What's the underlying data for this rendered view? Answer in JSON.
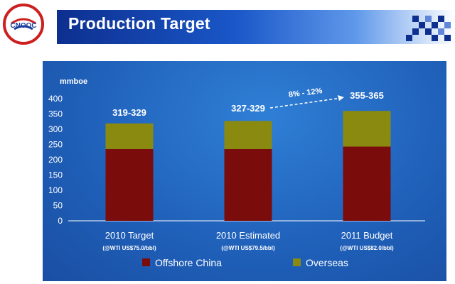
{
  "header": {
    "title": "Production Target",
    "logo_icon": "cnooc-logo-icon",
    "logo_text": "CNOOC"
  },
  "colors": {
    "accent": "#0d2f8f",
    "offshore": "#7a0c0c",
    "overseas": "#8a8a10",
    "panel": "#1f5fb8"
  },
  "chart_data": {
    "type": "bar",
    "stacked": true,
    "ylabel": "mmboe",
    "ylim": [
      0,
      400
    ],
    "yticks": [
      "0",
      "50",
      "100",
      "150",
      "200",
      "250",
      "300",
      "350",
      "400"
    ],
    "categories": [
      "2010 Target",
      "2010 Estimated",
      "2011 Budget"
    ],
    "sublabels": [
      "(@WTI US$75.0/bbl)",
      "(@WTI US$79.5/bbl)",
      "(@WTI US$82.0/bbl)"
    ],
    "series": [
      {
        "name": "Offshore China",
        "values": [
          235,
          235,
          243
        ]
      },
      {
        "name": "Overseas",
        "values": [
          84,
          92,
          117
        ]
      }
    ],
    "data_labels": [
      "319-329",
      "327-329",
      "355-365"
    ],
    "growth_annotation": "8% - 12%",
    "legend": [
      "Offshore China",
      "Overseas"
    ],
    "legend_position": "bottom",
    "grid": false
  }
}
